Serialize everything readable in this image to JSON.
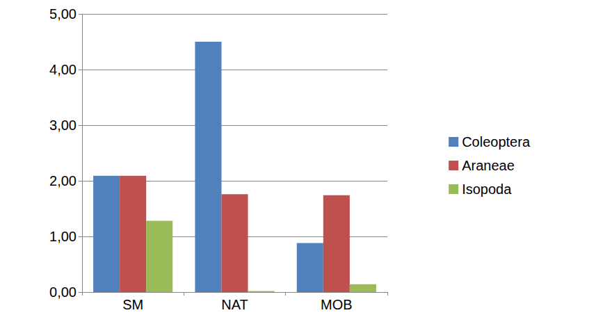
{
  "chart_data": {
    "type": "bar",
    "categories": [
      "SM",
      "NAT",
      "MOB"
    ],
    "series": [
      {
        "name": "Coleoptera",
        "color": "#4f81bd",
        "values": [
          2.09,
          4.5,
          0.88
        ]
      },
      {
        "name": "Araneae",
        "color": "#c0504d",
        "values": [
          2.09,
          1.76,
          1.74
        ]
      },
      {
        "name": "Isopoda",
        "color": "#9bbb59",
        "values": [
          1.28,
          0.02,
          0.14
        ]
      }
    ],
    "ylim": [
      0,
      5
    ],
    "yticks": [
      {
        "value": 0,
        "label": "0,00"
      },
      {
        "value": 1,
        "label": "1,00"
      },
      {
        "value": 2,
        "label": "2,00"
      },
      {
        "value": 3,
        "label": "3,00"
      },
      {
        "value": 4,
        "label": "4,00"
      },
      {
        "value": 5,
        "label": "5,00"
      }
    ],
    "grid": true,
    "legend": "right"
  }
}
